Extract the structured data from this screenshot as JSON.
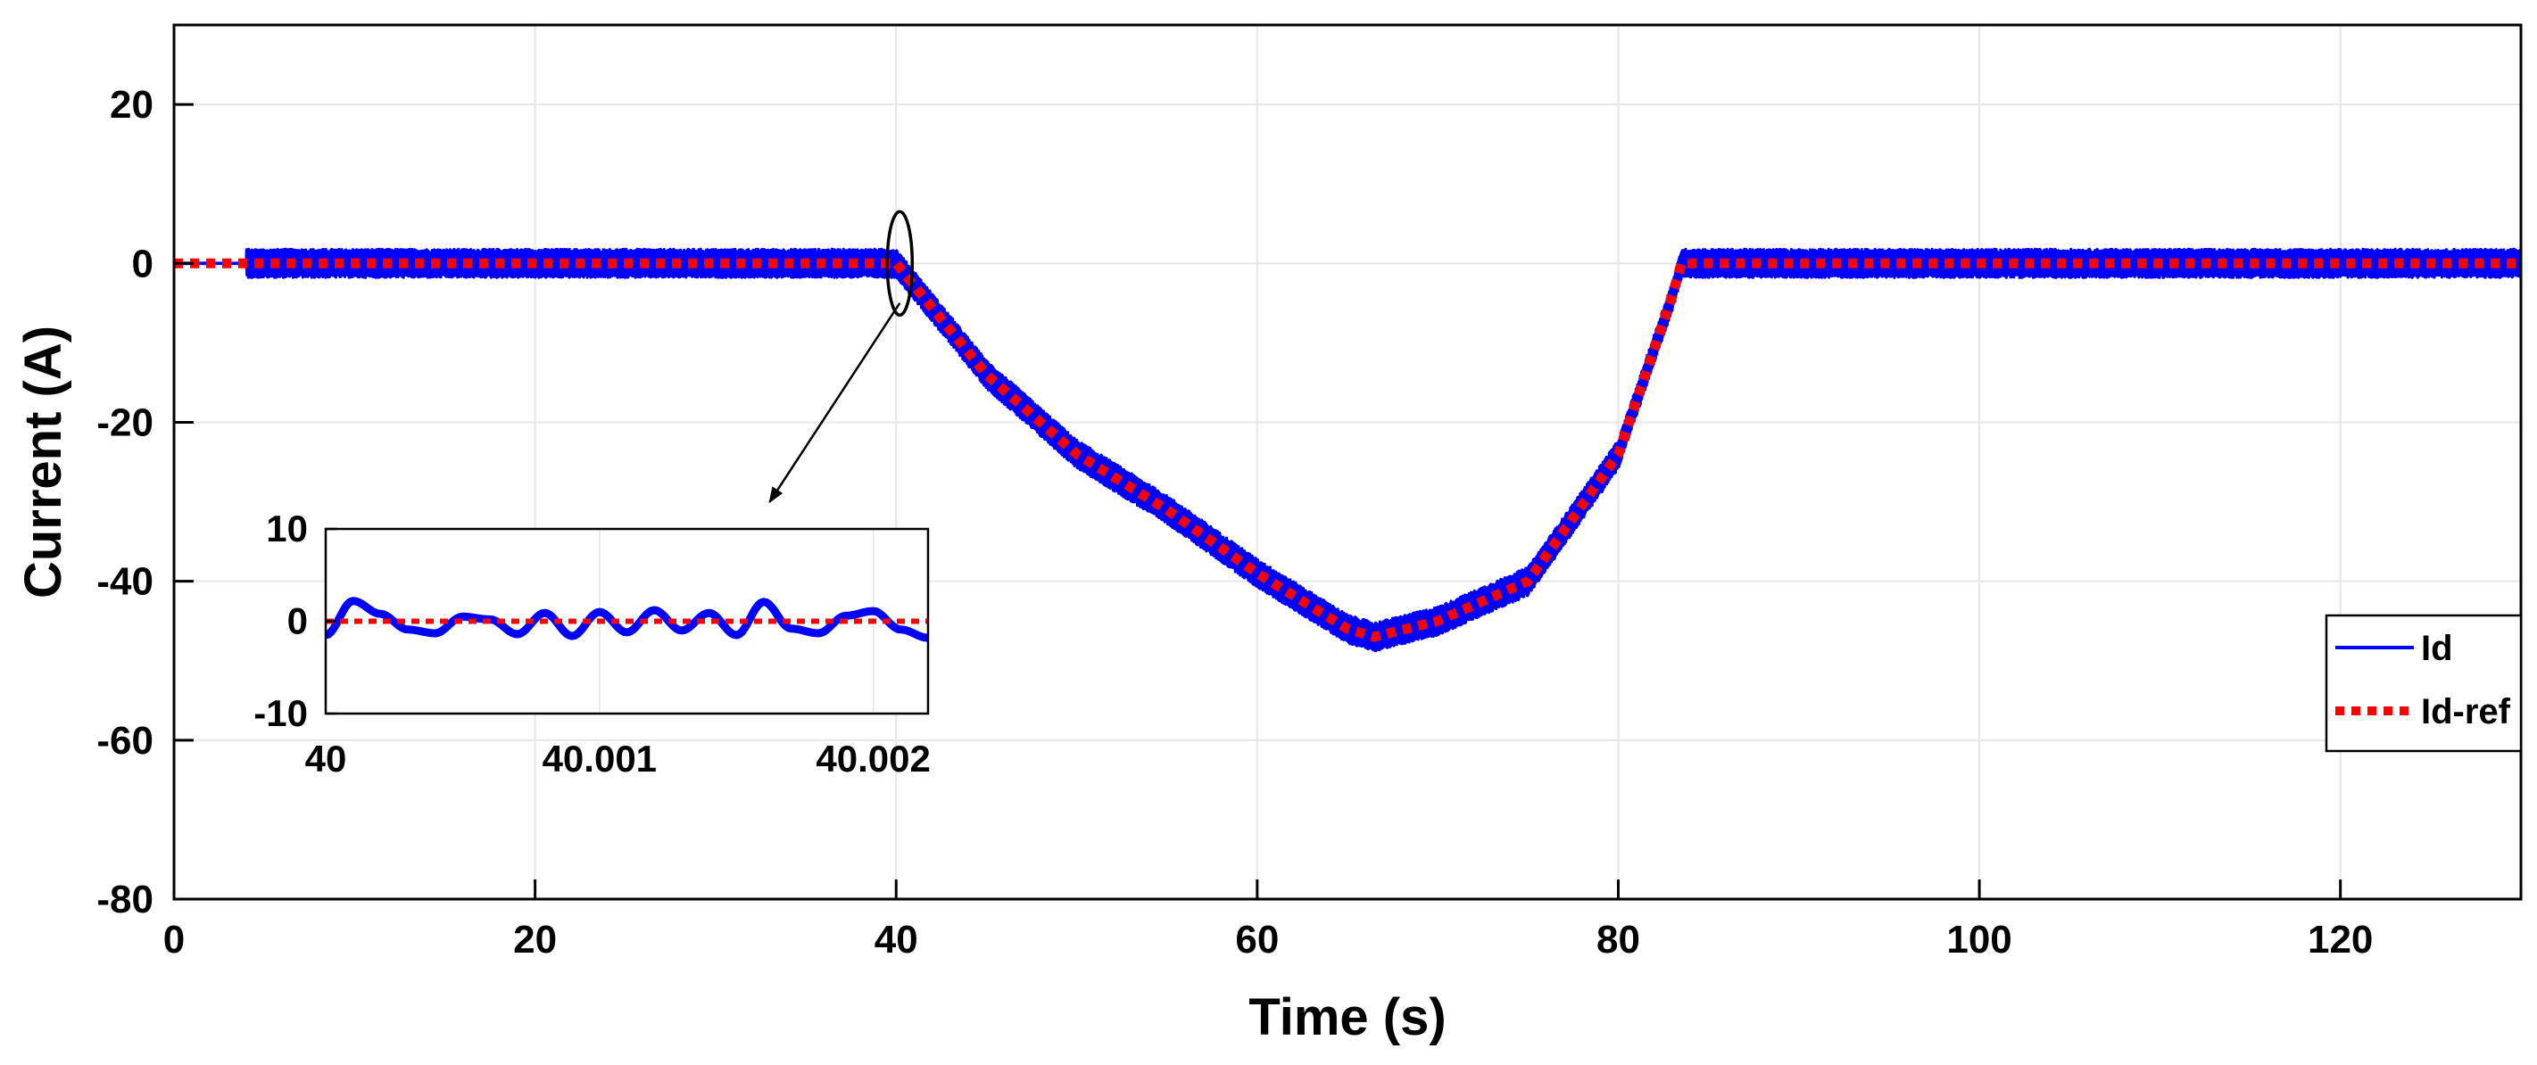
{
  "chart_data": [
    {
      "type": "line",
      "title": "",
      "xlabel": "Time (s)",
      "ylabel": "Current (A)",
      "xlim": [
        0,
        130
      ],
      "ylim": [
        -80,
        30
      ],
      "xticks": [
        0,
        20,
        40,
        60,
        80,
        100,
        120
      ],
      "yticks": [
        20,
        0,
        -20,
        -40,
        -60,
        -80
      ],
      "grid": true,
      "legend_position": "right",
      "series": [
        {
          "name": "Id",
          "color": "#0000ff",
          "style": "solid",
          "band_halfwidth": 1.8,
          "x": [
            0,
            4,
            4.5,
            10,
            20,
            30,
            40,
            45,
            50,
            55,
            60,
            65,
            66.5,
            70,
            75,
            80,
            83,
            83.5,
            90,
            100,
            110,
            120,
            130
          ],
          "y": [
            0,
            0,
            0,
            0,
            0,
            0,
            0,
            -14,
            -24,
            -31,
            -39,
            -46,
            -47,
            -45,
            -40,
            -24,
            -4,
            0,
            0,
            0,
            0,
            0,
            0
          ]
        },
        {
          "name": "Id-ref",
          "color": "#ff0000",
          "style": "dotted",
          "x": [
            0,
            4,
            4.5,
            10,
            20,
            30,
            40,
            45,
            50,
            55,
            60,
            65,
            66.5,
            70,
            75,
            80,
            83,
            83.5,
            90,
            100,
            110,
            120,
            130
          ],
          "y": [
            0,
            0,
            0,
            0,
            0,
            0,
            0,
            -14,
            -24,
            -31,
            -39,
            -46,
            -47,
            -45,
            -40,
            -24,
            -4,
            0,
            0,
            0,
            0,
            0,
            0
          ]
        }
      ],
      "annotations": [
        {
          "type": "ellipse",
          "x": 40.2,
          "y": 0
        },
        {
          "type": "arrow",
          "from": [
            40.2,
            -5
          ],
          "to": [
            33,
            -30
          ]
        }
      ]
    },
    {
      "type": "line",
      "inset": true,
      "xlim": [
        40,
        40.0022
      ],
      "ylim": [
        -10,
        10
      ],
      "xticks": [
        40,
        40.001,
        40.002
      ],
      "xticklabels": [
        "40",
        "40.001",
        "40.002"
      ],
      "yticks": [
        10,
        0,
        -10
      ],
      "grid": true,
      "series": [
        {
          "name": "Id",
          "color": "#0000ff",
          "style": "solid",
          "x": [
            40.0,
            40.0001,
            40.0002,
            40.0003,
            40.0004,
            40.0005,
            40.0006,
            40.0007,
            40.0008,
            40.0009,
            40.001,
            40.0011,
            40.0012,
            40.0013,
            40.0014,
            40.0015,
            40.0016,
            40.0017,
            40.0018,
            40.0019,
            40.002,
            40.0021,
            40.0022
          ],
          "y": [
            -1.5,
            2.2,
            0.8,
            -0.9,
            -1.3,
            0.5,
            0.2,
            -1.4,
            0.9,
            -1.6,
            1.0,
            -1.2,
            1.2,
            -1.0,
            0.9,
            -1.5,
            2.1,
            -0.8,
            -1.3,
            0.6,
            1.1,
            -0.9,
            -1.8
          ]
        },
        {
          "name": "Id-ref",
          "color": "#ff0000",
          "style": "dotted",
          "x": [
            40.0,
            40.0022
          ],
          "y": [
            0,
            0
          ]
        }
      ]
    }
  ]
}
